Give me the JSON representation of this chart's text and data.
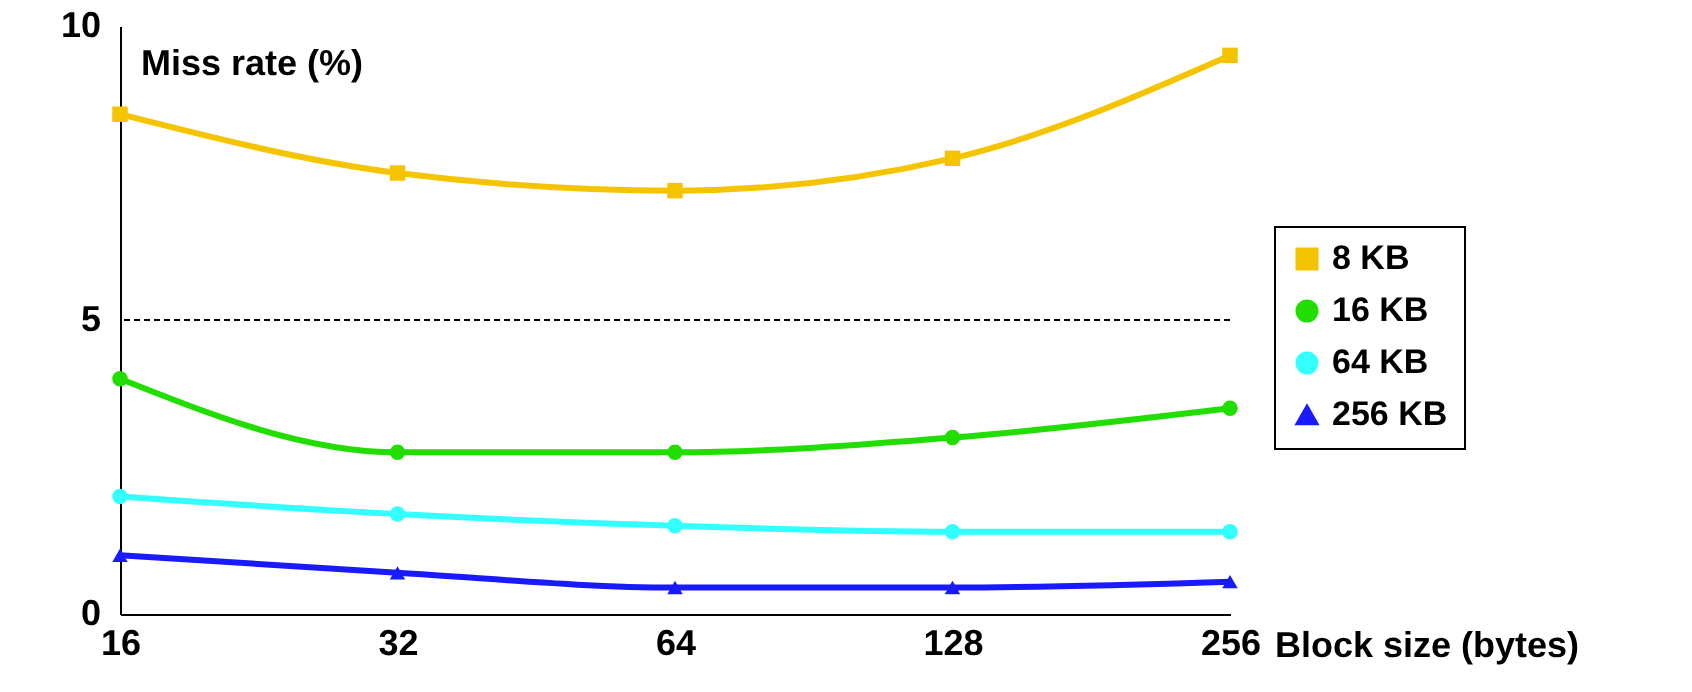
{
  "chart_data": {
    "type": "line",
    "ylabel": "Miss rate (%)",
    "xlabel": "Block size (bytes)",
    "categories": [
      "16",
      "32",
      "64",
      "128",
      "256"
    ],
    "ylim": [
      0,
      10
    ],
    "yticks": [
      0,
      5,
      10
    ],
    "legend": "right",
    "grid": false,
    "ref_lines": [
      {
        "axis": "y",
        "value": 5,
        "color": "#000000",
        "line_style": "dashed"
      }
    ],
    "series": [
      {
        "name": "8 KB",
        "color": "#f5c400",
        "marker": "square",
        "values": [
          8.5,
          7.5,
          7.2,
          7.75,
          9.5
        ]
      },
      {
        "name": "16 KB",
        "color": "#22dd00",
        "marker": "circle",
        "values": [
          4.0,
          2.75,
          2.75,
          3.0,
          3.5
        ]
      },
      {
        "name": "64 KB",
        "color": "#33ffff",
        "marker": "circle",
        "values": [
          2.0,
          1.7,
          1.5,
          1.4,
          1.4
        ]
      },
      {
        "name": "256 KB",
        "color": "#1a1aff",
        "marker": "triangle",
        "values": [
          1.0,
          0.7,
          0.45,
          0.45,
          0.55
        ]
      }
    ]
  }
}
